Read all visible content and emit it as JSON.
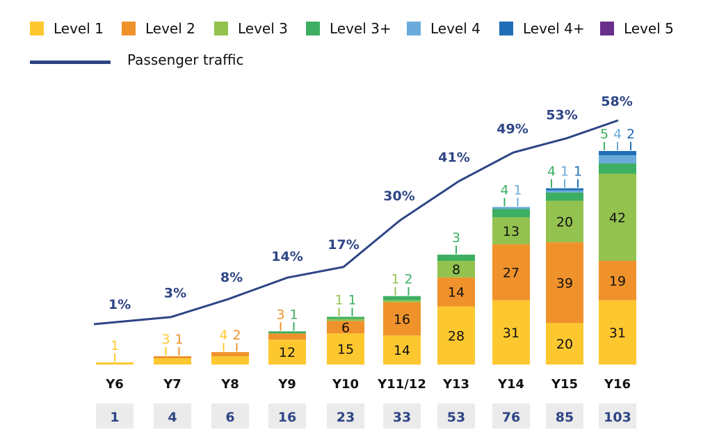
{
  "chart_data": {
    "type": "bar",
    "stacked": true,
    "title": "",
    "xlabel": "",
    "ylabel": "",
    "categories": [
      "Y6",
      "Y7",
      "Y8",
      "Y9",
      "Y10",
      "Y11/12",
      "Y13",
      "Y14",
      "Y15",
      "Y16"
    ],
    "series": [
      {
        "name": "Level 1",
        "color": "#fdc82f",
        "values": [
          1,
          3,
          4,
          12,
          15,
          14,
          28,
          31,
          20,
          31
        ]
      },
      {
        "name": "Level 2",
        "color": "#f0922b",
        "values": [
          0,
          1,
          2,
          3,
          6,
          16,
          14,
          27,
          39,
          19
        ]
      },
      {
        "name": "Level 3",
        "color": "#93c24f",
        "values": [
          0,
          0,
          0,
          0,
          1,
          1,
          8,
          13,
          20,
          42
        ]
      },
      {
        "name": "Level 3+",
        "color": "#3daf62",
        "values": [
          0,
          0,
          0,
          1,
          1,
          2,
          3,
          4,
          4,
          5
        ]
      },
      {
        "name": "Level 4",
        "color": "#6aabdc",
        "values": [
          0,
          0,
          0,
          0,
          0,
          0,
          0,
          1,
          1,
          4
        ]
      },
      {
        "name": "Level 4+",
        "color": "#1f6eb6",
        "values": [
          0,
          0,
          0,
          0,
          0,
          0,
          0,
          0,
          1,
          2
        ]
      },
      {
        "name": "Level 5",
        "color": "#6a2f8a",
        "values": [
          0,
          0,
          0,
          0,
          0,
          0,
          0,
          0,
          0,
          0
        ]
      }
    ],
    "line_series": {
      "name": "Passenger traffic",
      "color": "#2e4585",
      "values": [
        1,
        3,
        8,
        14,
        17,
        30,
        41,
        49,
        53,
        58
      ],
      "labels": [
        "1%",
        "3%",
        "8%",
        "14%",
        "17%",
        "30%",
        "41%",
        "49%",
        "53%",
        "58%"
      ]
    },
    "totals": [
      "1",
      "4",
      "6",
      "16",
      "23",
      "33",
      "53",
      "76",
      "85",
      "103"
    ],
    "inside_labels": [
      [
        null,
        null,
        null
      ],
      [
        null,
        null,
        null
      ],
      [
        null,
        null,
        null
      ],
      [
        "12",
        null,
        null
      ],
      [
        "15",
        "6",
        null
      ],
      [
        "14",
        "16",
        null
      ],
      [
        "28",
        "14",
        "8"
      ],
      [
        "31",
        "27",
        "13"
      ],
      [
        "20",
        "39",
        "20"
      ],
      [
        "31",
        "19",
        "42"
      ]
    ],
    "callouts": [
      [
        {
          "text": "1",
          "series": 0
        }
      ],
      [
        {
          "text": "3",
          "series": 0
        },
        {
          "text": "1",
          "series": 1
        }
      ],
      [
        {
          "text": "4",
          "series": 0
        },
        {
          "text": "2",
          "series": 1
        }
      ],
      [
        {
          "text": "3",
          "series": 1
        },
        {
          "text": "1",
          "series": 3
        }
      ],
      [
        {
          "text": "1",
          "series": 2
        },
        {
          "text": "1",
          "series": 3
        }
      ],
      [
        {
          "text": "1",
          "series": 2
        },
        {
          "text": "2",
          "series": 3
        }
      ],
      [
        {
          "text": "3",
          "series": 3
        }
      ],
      [
        {
          "text": "4",
          "series": 3
        },
        {
          "text": "1",
          "series": 4
        }
      ],
      [
        {
          "text": "4",
          "series": 3
        },
        {
          "text": "1",
          "series": 4
        },
        {
          "text": "1",
          "series": 5
        }
      ],
      [
        {
          "text": "5",
          "series": 3
        },
        {
          "text": "4",
          "series": 4
        },
        {
          "text": "2",
          "series": 5
        }
      ]
    ],
    "legend_position": "top",
    "grid": false
  }
}
